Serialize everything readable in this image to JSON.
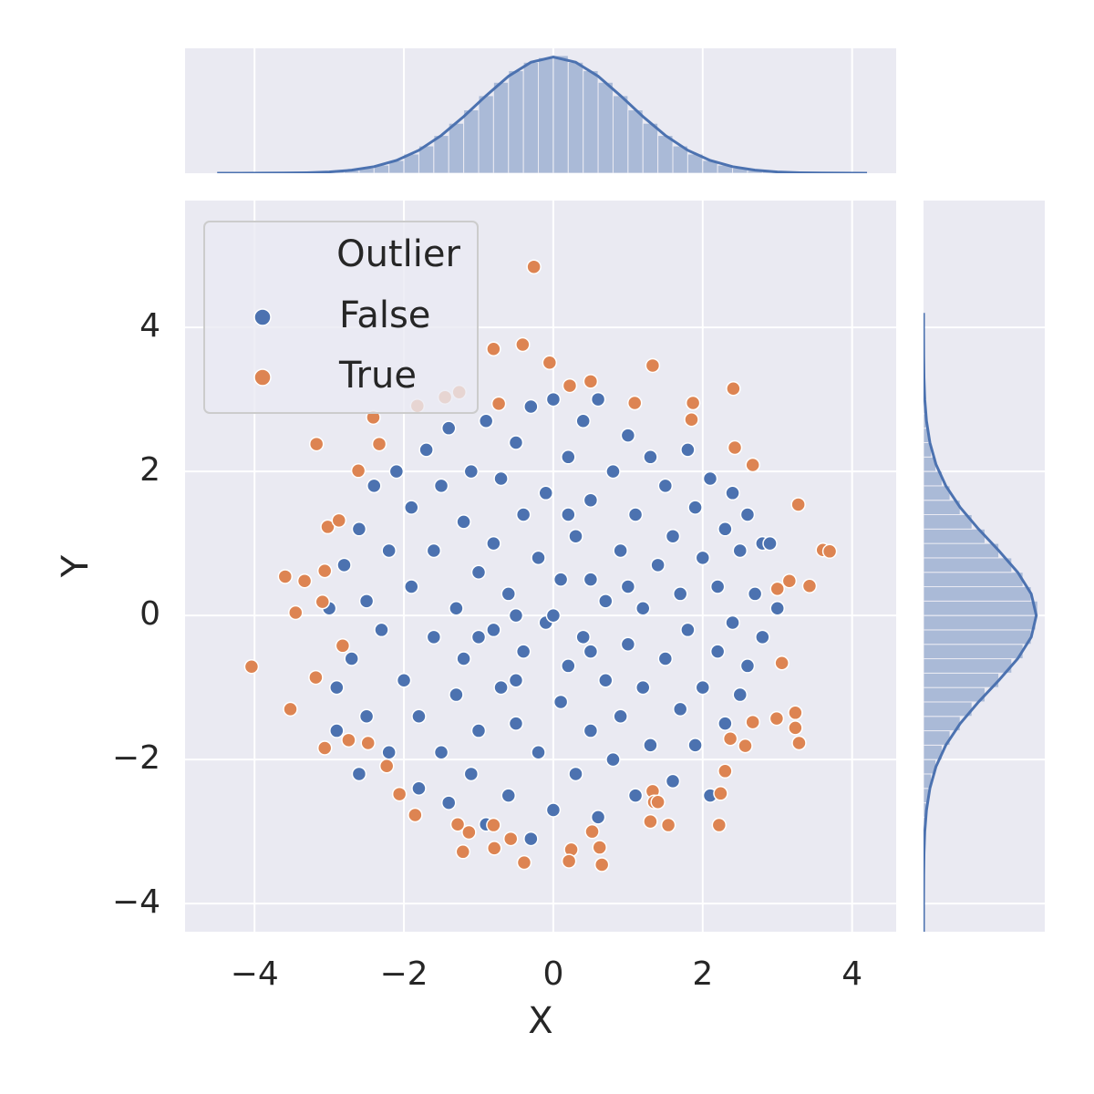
{
  "chart_data": [
    {
      "type": "scatter",
      "xlabel": "X",
      "ylabel": "Y",
      "xlim": [
        -4.93,
        4.59
      ],
      "ylim": [
        -4.39,
        5.76
      ],
      "xticks": [
        {
          "value": -4,
          "label": "−4"
        },
        {
          "value": -2,
          "label": "−2"
        },
        0,
        2,
        4
      ],
      "yticks": [
        {
          "value": -4,
          "label": "−4"
        },
        {
          "value": -2,
          "label": "−2"
        },
        0,
        2,
        4
      ],
      "grid": true,
      "legend": "upper left",
      "legend_title": "Outlier",
      "series": [
        {
          "name": "False",
          "color": "#4c72b0",
          "x": [
            -2.9,
            -2.8,
            -2.7,
            -2.6,
            -2.5,
            -2.5,
            -2.4,
            -2.3,
            -2.2,
            -2.2,
            -2.1,
            -2.0,
            -1.9,
            -1.9,
            -1.8,
            -1.8,
            -1.7,
            -1.6,
            -1.6,
            -1.5,
            -1.5,
            -1.4,
            -1.4,
            -1.3,
            -1.3,
            -1.2,
            -1.2,
            -1.1,
            -1.1,
            -1.0,
            -1.0,
            -0.9,
            -0.9,
            -0.8,
            -0.8,
            -0.7,
            -0.7,
            -0.6,
            -0.6,
            -0.5,
            -0.5,
            -0.4,
            -0.4,
            -0.3,
            -0.3,
            -0.2,
            -0.2,
            -0.1,
            -0.1,
            0.0,
            0.0,
            0.1,
            0.1,
            0.2,
            0.2,
            0.3,
            0.3,
            0.4,
            0.4,
            0.5,
            0.5,
            0.6,
            0.6,
            0.7,
            0.7,
            0.8,
            0.8,
            0.9,
            0.9,
            1.0,
            1.0,
            1.1,
            1.1,
            1.2,
            1.2,
            1.3,
            1.3,
            1.4,
            1.5,
            1.5,
            1.6,
            1.6,
            1.7,
            1.7,
            1.8,
            1.8,
            1.9,
            1.9,
            2.0,
            2.0,
            2.1,
            2.1,
            2.2,
            2.2,
            2.3,
            2.3,
            2.4,
            2.4,
            2.5,
            2.5,
            2.6,
            2.6,
            2.7,
            2.8,
            2.8,
            2.9,
            3.0,
            -2.9,
            -3.0,
            -2.6,
            0.0,
            -0.5,
            0.5,
            0.5,
            -0.5,
            1.0,
            -1.0,
            0.2
          ],
          "y": [
            -1.0,
            0.7,
            -0.6,
            1.2,
            0.2,
            -1.4,
            1.8,
            -0.2,
            0.9,
            -1.9,
            2.0,
            -0.9,
            0.4,
            1.5,
            -2.4,
            -1.4,
            2.3,
            -0.3,
            0.9,
            -1.9,
            1.8,
            -2.6,
            2.6,
            0.1,
            -1.1,
            1.3,
            -0.6,
            2.0,
            -2.2,
            0.6,
            -1.6,
            2.7,
            -2.9,
            -0.2,
            1.0,
            -1.0,
            1.9,
            -2.5,
            0.3,
            2.4,
            -1.5,
            1.4,
            -0.5,
            -3.1,
            2.9,
            0.8,
            -1.9,
            -0.1,
            1.7,
            3.0,
            -2.7,
            0.5,
            -1.2,
            2.2,
            -0.7,
            1.1,
            -2.2,
            2.7,
            -0.3,
            -1.6,
            1.6,
            3.0,
            -2.8,
            0.2,
            -0.9,
            2.0,
            -2.0,
            0.9,
            -1.4,
            2.5,
            -0.4,
            -2.5,
            1.4,
            0.1,
            -1.0,
            2.2,
            -1.8,
            0.7,
            -0.6,
            1.8,
            -2.3,
            1.1,
            -1.3,
            0.3,
            2.3,
            -0.2,
            -1.8,
            1.5,
            0.8,
            -1.0,
            -2.5,
            1.9,
            -0.5,
            0.4,
            1.2,
            -1.5,
            -0.1,
            1.7,
            0.9,
            -1.1,
            -0.7,
            1.4,
            0.3,
            -0.3,
            1.0,
            1.0,
            0.1,
            -1.6,
            0.1,
            -2.2,
            0.0,
            0.0,
            0.5,
            -0.5,
            -0.9,
            0.4,
            -0.3,
            1.4
          ]
        },
        {
          "name": "True",
          "color": "#dd8452",
          "x": [
            -0.26,
            -0.8,
            -0.41,
            -0.05,
            1.33,
            0.5,
            0.22,
            2.41,
            -1.45,
            -1.26,
            -1.82,
            -0.73,
            1.09,
            1.87,
            -2.41,
            1.85,
            -3.17,
            -2.33,
            2.43,
            -2.61,
            2.67,
            3.28,
            -3.02,
            -2.87,
            3.61,
            3.7,
            -3.06,
            -3.59,
            -3.33,
            3.16,
            3.0,
            3.43,
            -3.09,
            -3.45,
            -2.82,
            -4.04,
            3.06,
            -3.18,
            -3.52,
            2.99,
            3.24,
            2.67,
            3.24,
            -3.06,
            -2.74,
            -2.48,
            3.29,
            2.57,
            2.37,
            -2.23,
            2.3,
            -2.06,
            2.24,
            1.33,
            -1.85,
            1.35,
            -1.28,
            -1.13,
            -0.8,
            -0.57,
            -0.79,
            -1.21,
            -0.39,
            0.24,
            0.21,
            0.52,
            0.62,
            0.65,
            1.3,
            1.54,
            2.22,
            1.4
          ],
          "y": [
            4.84,
            3.7,
            3.76,
            3.51,
            3.47,
            3.25,
            3.19,
            3.15,
            3.03,
            3.1,
            2.91,
            2.94,
            2.95,
            2.95,
            2.75,
            2.72,
            2.38,
            2.38,
            2.33,
            2.01,
            2.09,
            1.54,
            1.23,
            1.32,
            0.91,
            0.89,
            0.62,
            0.54,
            0.48,
            0.48,
            0.37,
            0.41,
            0.19,
            0.04,
            -0.42,
            -0.71,
            -0.66,
            -0.86,
            -1.3,
            -1.43,
            -1.35,
            -1.48,
            -1.56,
            -1.84,
            -1.73,
            -1.77,
            -1.77,
            -1.81,
            -1.71,
            -2.09,
            -2.16,
            -2.48,
            -2.47,
            -2.44,
            -2.77,
            -2.59,
            -2.9,
            -3.01,
            -2.91,
            -3.1,
            -3.23,
            -3.28,
            -3.43,
            -3.25,
            -3.41,
            -3.0,
            -3.22,
            -3.46,
            -2.86,
            -2.91,
            -2.91,
            -2.59
          ]
        }
      ]
    },
    {
      "type": "histogram",
      "orientation": "vertical",
      "color": "#4c72b0",
      "xlim": [
        -4.93,
        4.59
      ],
      "ylim": [
        0,
        430
      ],
      "bins": [
        -4.0,
        -3.8,
        -3.6,
        -3.4,
        -3.2,
        -3.0,
        -2.8,
        -2.6,
        -2.4,
        -2.2,
        -2.0,
        -1.8,
        -1.6,
        -1.4,
        -1.2,
        -1.0,
        -0.8,
        -0.6,
        -0.4,
        -0.2,
        0.0,
        0.2,
        0.4,
        0.6,
        0.8,
        1.0,
        1.2,
        1.4,
        1.6,
        1.8,
        2.0,
        2.2,
        2.4,
        2.6,
        2.8,
        3.0,
        3.2,
        3.4,
        3.6,
        3.8
      ],
      "counts": [
        0,
        0,
        1,
        2,
        3,
        6,
        10,
        18,
        28,
        44,
        66,
        94,
        130,
        172,
        218,
        267,
        313,
        353,
        382,
        398,
        405,
        382,
        353,
        313,
        267,
        218,
        172,
        130,
        94,
        66,
        44,
        28,
        18,
        10,
        6,
        3,
        2,
        1,
        1
      ],
      "kde": {
        "x": [
          -4.5,
          -4.2,
          -3.9,
          -3.6,
          -3.3,
          -3.0,
          -2.7,
          -2.4,
          -2.1,
          -1.8,
          -1.5,
          -1.2,
          -0.9,
          -0.6,
          -0.3,
          0.0,
          0.3,
          0.6,
          0.9,
          1.2,
          1.5,
          1.8,
          2.1,
          2.4,
          2.7,
          3.0,
          3.3,
          3.6,
          3.9,
          4.2
        ],
        "values": [
          0,
          0.1,
          0.2,
          0.6,
          1.7,
          4.4,
          10.5,
          22.5,
          44,
          79,
          130,
          195,
          267,
          334,
          382,
          400,
          382,
          334,
          267,
          195,
          130,
          79,
          44,
          22.5,
          10.5,
          4.4,
          1.7,
          0.6,
          0.2,
          0.1
        ]
      }
    },
    {
      "type": "histogram",
      "orientation": "horizontal",
      "color": "#4c72b0",
      "ylim": [
        -4.39,
        5.76
      ],
      "xlim": [
        0,
        430
      ],
      "bins": [
        -3.6,
        -3.4,
        -3.2,
        -3.0,
        -2.8,
        -2.6,
        -2.4,
        -2.2,
        -2.0,
        -1.8,
        -1.6,
        -1.4,
        -1.2,
        -1.0,
        -0.8,
        -0.6,
        -0.4,
        -0.2,
        0.0,
        0.2,
        0.4,
        0.6,
        0.8,
        1.0,
        1.2,
        1.4,
        1.6,
        1.8,
        2.0,
        2.2,
        2.4,
        2.6,
        2.8,
        3.0,
        3.2,
        3.4
      ],
      "counts": [
        1,
        2,
        3,
        6,
        10,
        18,
        28,
        44,
        66,
        94,
        130,
        172,
        218,
        267,
        313,
        353,
        382,
        398,
        405,
        382,
        353,
        313,
        267,
        218,
        172,
        130,
        94,
        66,
        44,
        28,
        18,
        10,
        6,
        3,
        2
      ],
      "kde": {
        "x": [
          -4.5,
          -4.2,
          -3.9,
          -3.6,
          -3.3,
          -3.0,
          -2.7,
          -2.4,
          -2.1,
          -1.8,
          -1.5,
          -1.2,
          -0.9,
          -0.6,
          -0.3,
          0.0,
          0.3,
          0.6,
          0.9,
          1.2,
          1.5,
          1.8,
          2.1,
          2.4,
          2.7,
          3.0,
          3.3,
          3.6,
          3.9,
          4.2
        ],
        "values": [
          0,
          0.1,
          0.2,
          0.6,
          1.7,
          4.4,
          10.5,
          22.5,
          44,
          79,
          130,
          195,
          267,
          334,
          382,
          400,
          382,
          334,
          267,
          195,
          130,
          79,
          44,
          22.5,
          10.5,
          4.4,
          1.7,
          0.6,
          0.2,
          0.1
        ]
      }
    }
  ]
}
